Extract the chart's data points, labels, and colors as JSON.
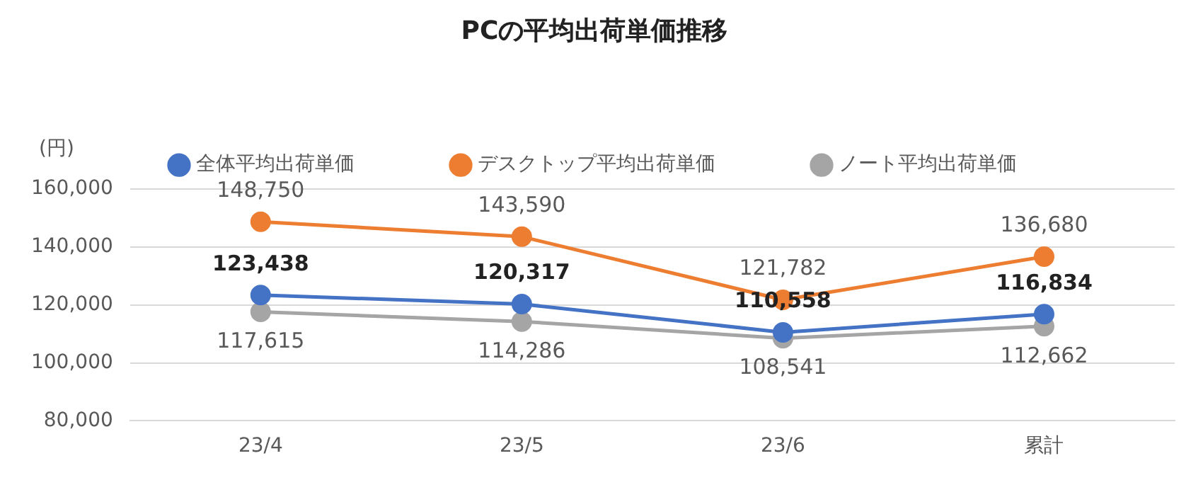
{
  "chart_data": {
    "type": "line",
    "title": "PCの平均出荷単価推移",
    "ylabel": "(円)",
    "categories": [
      "23/4",
      "23/5",
      "23/6",
      "累計"
    ],
    "series": [
      {
        "name": "全体平均出荷単価",
        "color": "#4472c4",
        "values": [
          123438,
          120317,
          110558,
          116834
        ],
        "value_labels": [
          "123,438",
          "120,317",
          "110,558",
          "116,834"
        ]
      },
      {
        "name": "デスクトップ平均出荷単価",
        "color": "#ed7d31",
        "values": [
          148750,
          143590,
          121782,
          136680
        ],
        "value_labels": [
          "148,750",
          "143,590",
          "121,782",
          "136,680"
        ]
      },
      {
        "name": "ノート平均出荷単価",
        "color": "#a5a5a5",
        "values": [
          117615,
          114286,
          108541,
          112662
        ],
        "value_labels": [
          "117,615",
          "114,286",
          "108,541",
          "112,662"
        ]
      }
    ],
    "ylim": [
      80000,
      160000
    ],
    "yticks": [
      {
        "value": 80000,
        "label": "80,000"
      },
      {
        "value": 100000,
        "label": "100,000"
      },
      {
        "value": 120000,
        "label": "120,000"
      },
      {
        "value": 140000,
        "label": "140,000"
      },
      {
        "value": 160000,
        "label": "160,000"
      }
    ],
    "grid": "y",
    "legend": "top",
    "marker": "circle",
    "line_style": "solid"
  }
}
